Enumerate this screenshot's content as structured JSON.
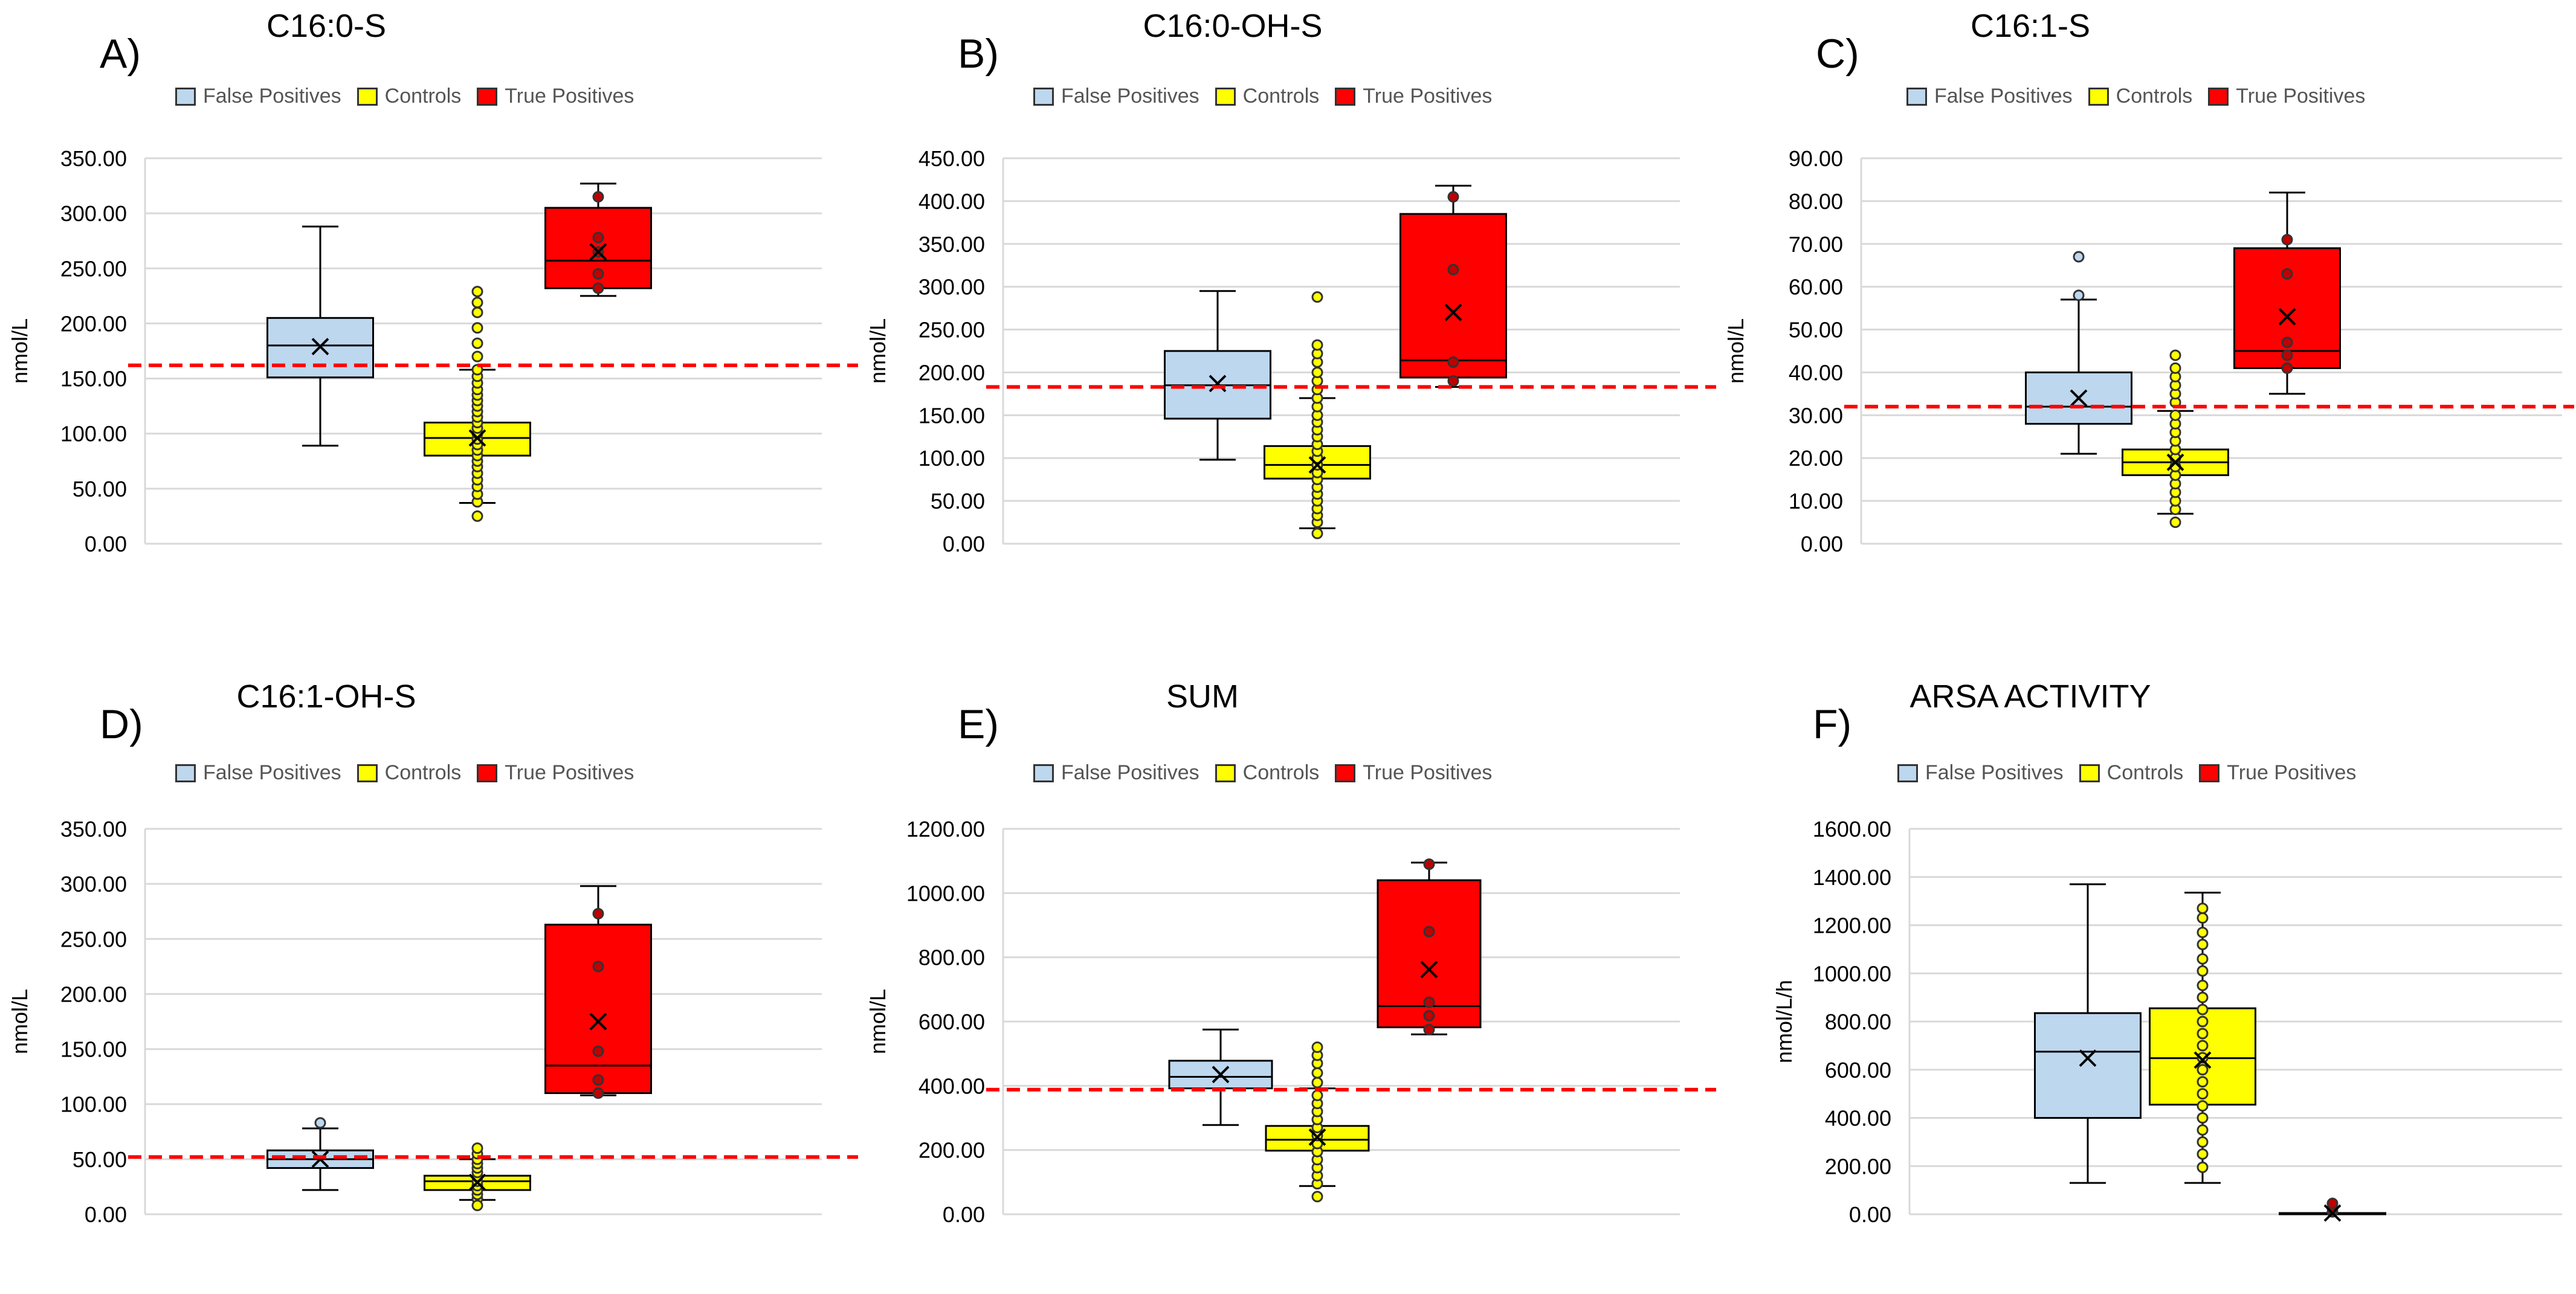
{
  "legend": {
    "false_positives": "False Positives",
    "controls": "Controls",
    "true_positives": "True Positives"
  },
  "colors": {
    "false_positives": "#BDD7EE",
    "controls": "#FFFF00",
    "true_positives": "#FF0000",
    "cutoff": "#FF0000",
    "grid": "#D9D9D9"
  },
  "chart_data": [
    {
      "id": "A",
      "label": "A)",
      "type": "box",
      "title": "C16:0-S",
      "ylabel": "nmol/L",
      "ylim": [
        0,
        350
      ],
      "ytick_step": 50,
      "yticks": [
        "0.00",
        "50.00",
        "100.00",
        "150.00",
        "200.00",
        "250.00",
        "300.00",
        "350.00"
      ],
      "cutoff": 162,
      "series": [
        {
          "name": "False Positives",
          "min": 89,
          "q1": 151,
          "median": 180,
          "q3": 205,
          "max": 288,
          "mean": 179,
          "outliers": [],
          "points": []
        },
        {
          "name": "Controls",
          "min": 37,
          "q1": 80,
          "median": 96,
          "q3": 110,
          "max": 158,
          "mean": 96,
          "outliers": [
            25,
            170,
            182,
            196,
            210,
            219,
            229
          ],
          "points": [
            38,
            45,
            52,
            58,
            64,
            70,
            75,
            80,
            85,
            90,
            95,
            100,
            105,
            110,
            115,
            120,
            125,
            130,
            135,
            140,
            146,
            152,
            158
          ]
        },
        {
          "name": "True Positives",
          "min": 225,
          "q1": 232,
          "median": 257,
          "q3": 305,
          "max": 327,
          "mean": 265,
          "outliers": [],
          "points": [
            232,
            245,
            265,
            278,
            315
          ]
        }
      ]
    },
    {
      "id": "B",
      "label": "B)",
      "type": "box",
      "title": "C16:0-OH-S",
      "ylabel": "nmol/L",
      "ylim": [
        0,
        450
      ],
      "ytick_step": 50,
      "yticks": [
        "0.00",
        "50.00",
        "100.00",
        "150.00",
        "200.00",
        "250.00",
        "300.00",
        "350.00",
        "400.00",
        "450.00"
      ],
      "cutoff": 183,
      "series": [
        {
          "name": "False Positives",
          "min": 98,
          "q1": 146,
          "median": 185,
          "q3": 225,
          "max": 295,
          "mean": 187,
          "outliers": [],
          "points": []
        },
        {
          "name": "Controls",
          "min": 18,
          "q1": 76,
          "median": 92,
          "q3": 114,
          "max": 170,
          "mean": 92,
          "outliers": [
            12,
            180,
            190,
            200,
            212,
            222,
            232,
            288
          ],
          "points": [
            25,
            33,
            41,
            50,
            58,
            66,
            75,
            83,
            92,
            100,
            108,
            116,
            125,
            133,
            142,
            150,
            160,
            170
          ]
        },
        {
          "name": "True Positives",
          "min": 183,
          "q1": 194,
          "median": 214,
          "q3": 385,
          "max": 418,
          "mean": 270,
          "outliers": [],
          "points": [
            190,
            212,
            320,
            405
          ]
        }
      ]
    },
    {
      "id": "C",
      "label": "C)",
      "type": "box",
      "title": "C16:1-S",
      "ylabel": "nmol/L",
      "ylim": [
        0,
        90
      ],
      "ytick_step": 10,
      "yticks": [
        "0.00",
        "10.00",
        "20.00",
        "30.00",
        "40.00",
        "50.00",
        "60.00",
        "70.00",
        "80.00",
        "90.00"
      ],
      "cutoff": 32,
      "series": [
        {
          "name": "False Positives",
          "min": 21,
          "q1": 28,
          "median": 32,
          "q3": 40,
          "max": 57,
          "mean": 34,
          "outliers": [
            58,
            67
          ],
          "points": []
        },
        {
          "name": "Controls",
          "min": 7,
          "q1": 16,
          "median": 19,
          "q3": 22,
          "max": 31,
          "mean": 19,
          "outliers": [
            5,
            33,
            35,
            37,
            39,
            41,
            44
          ],
          "points": [
            8,
            10,
            12,
            14,
            16,
            18,
            20,
            22,
            24,
            26,
            28,
            30
          ]
        },
        {
          "name": "True Positives",
          "min": 35,
          "q1": 41,
          "median": 45,
          "q3": 69,
          "max": 82,
          "mean": 53,
          "outliers": [],
          "points": [
            41,
            44,
            47,
            63,
            71
          ]
        }
      ]
    },
    {
      "id": "D",
      "label": "D)",
      "type": "box",
      "title": "C16:1-OH-S",
      "ylabel": "nmol/L",
      "ylim": [
        0,
        350
      ],
      "ytick_step": 50,
      "yticks": [
        "0.00",
        "50.00",
        "100.00",
        "150.00",
        "200.00",
        "250.00",
        "300.00",
        "350.00"
      ],
      "cutoff": 52,
      "series": [
        {
          "name": "False Positives",
          "min": 22,
          "q1": 42,
          "median": 50,
          "q3": 58,
          "max": 78,
          "mean": 50,
          "outliers": [
            83
          ],
          "points": []
        },
        {
          "name": "Controls",
          "min": 13,
          "q1": 22,
          "median": 30,
          "q3": 35,
          "max": 50,
          "mean": 29,
          "outliers": [
            8,
            55,
            60
          ],
          "points": [
            14,
            18,
            22,
            26,
            30,
            34,
            38,
            42,
            46,
            50
          ]
        },
        {
          "name": "True Positives",
          "min": 108,
          "q1": 110,
          "median": 135,
          "q3": 263,
          "max": 298,
          "mean": 175,
          "outliers": [],
          "points": [
            110,
            122,
            148,
            225,
            273
          ]
        }
      ]
    },
    {
      "id": "E",
      "label": "E)",
      "type": "box",
      "title": "SUM",
      "ylabel": "nmol/L",
      "ylim": [
        0,
        1200
      ],
      "ytick_step": 200,
      "yticks": [
        "0.00",
        "200.00",
        "400.00",
        "600.00",
        "800.00",
        "1000.00",
        "1200.00"
      ],
      "cutoff": 388,
      "series": [
        {
          "name": "False Positives",
          "min": 278,
          "q1": 392,
          "median": 428,
          "q3": 478,
          "max": 575,
          "mean": 435,
          "outliers": [],
          "points": []
        },
        {
          "name": "Controls",
          "min": 88,
          "q1": 198,
          "median": 232,
          "q3": 275,
          "max": 392,
          "mean": 240,
          "outliers": [
            55,
            410,
            440,
            470,
            495,
            520
          ],
          "points": [
            95,
            120,
            145,
            170,
            195,
            220,
            245,
            270,
            295,
            320,
            345,
            370
          ]
        },
        {
          "name": "True Positives",
          "min": 560,
          "q1": 582,
          "median": 648,
          "q3": 1040,
          "max": 1095,
          "mean": 762,
          "outliers": [],
          "points": [
            575,
            618,
            660,
            880,
            1090
          ]
        }
      ]
    },
    {
      "id": "F",
      "label": "F)",
      "type": "box",
      "title": "ARSA ACTIVITY",
      "ylabel": "nmol/L/h",
      "ylim": [
        0,
        1600
      ],
      "ytick_step": 200,
      "yticks": [
        "0.00",
        "200.00",
        "400.00",
        "600.00",
        "800.00",
        "1000.00",
        "1200.00",
        "1400.00",
        "1600.00"
      ],
      "cutoff": null,
      "series": [
        {
          "name": "False Positives",
          "min": 130,
          "q1": 400,
          "median": 675,
          "q3": 835,
          "max": 1370,
          "mean": 648,
          "outliers": [],
          "points": []
        },
        {
          "name": "Controls",
          "min": 130,
          "q1": 455,
          "median": 648,
          "q3": 855,
          "max": 1335,
          "mean": 640,
          "outliers": [],
          "points": [
            195,
            250,
            300,
            350,
            400,
            450,
            500,
            550,
            600,
            650,
            700,
            750,
            800,
            850,
            900,
            950,
            1010,
            1060,
            1120,
            1170,
            1230,
            1270
          ]
        },
        {
          "name": "True Positives",
          "min": 0,
          "q1": 0,
          "median": 3,
          "q3": 5,
          "max": 5,
          "mean": 5,
          "outliers": [],
          "points": [
            10,
            25,
            45
          ]
        }
      ]
    }
  ]
}
